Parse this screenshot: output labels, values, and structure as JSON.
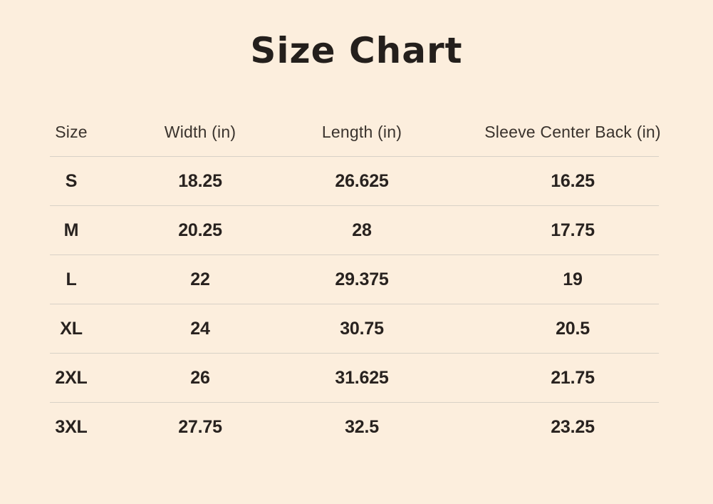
{
  "theme": {
    "bg": "#fceedd",
    "title": "#241f1c",
    "text": "#28221f",
    "header": "#3a332d",
    "divider": "#d8d1c6"
  },
  "chart_data": {
    "type": "table",
    "title": "Size Chart",
    "columns": [
      "Size",
      "Width (in)",
      "Length (in)",
      "Sleeve Center Back (in)"
    ],
    "rows": [
      [
        "S",
        "18.25",
        "26.625",
        "16.25"
      ],
      [
        "M",
        "20.25",
        "28",
        "17.75"
      ],
      [
        "L",
        "22",
        "29.375",
        "19"
      ],
      [
        "XL",
        "24",
        "30.75",
        "20.5"
      ],
      [
        "2XL",
        "26",
        "31.625",
        "21.75"
      ],
      [
        "3XL",
        "27.75",
        "32.5",
        "23.25"
      ]
    ]
  }
}
